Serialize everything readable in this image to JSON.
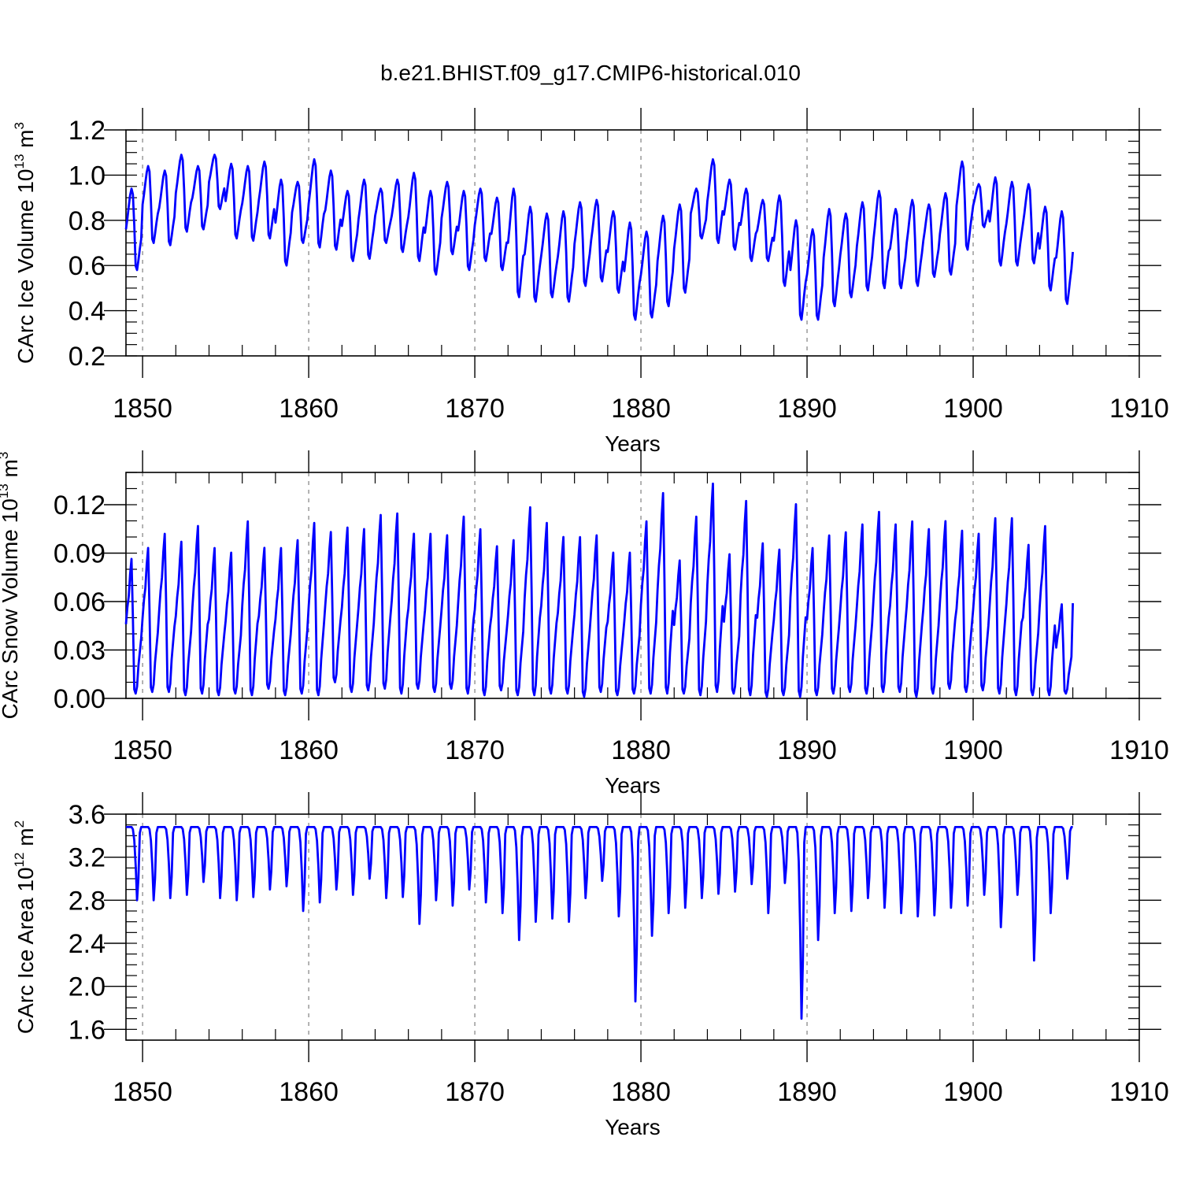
{
  "figure": {
    "title": "b.e21.BHIST.f09_g17.CMIP6-historical.010",
    "line_color": "#0000ff",
    "grid_color": "#808080"
  },
  "chart_data": [
    {
      "type": "line",
      "id": "ice-volume",
      "title": "",
      "xlabel": "Years",
      "ylabel": "CArc Ice Volume",
      "ylabel_scale": "10",
      "ylabel_scale_exp": "13",
      "ylabel_unit": "m",
      "ylabel_unit_exp": "3",
      "xlim": [
        1849.0,
        1910.0
      ],
      "ylim": [
        0.2,
        1.2
      ],
      "xticks": [
        1850,
        1860,
        1870,
        1880,
        1890,
        1900,
        1910
      ],
      "xtick_labels": [
        "1850",
        "1860",
        "1870",
        "1880",
        "1890",
        "1900",
        "1910"
      ],
      "yticks": [
        0.2,
        0.4,
        0.6,
        0.8,
        1.0,
        1.2
      ],
      "ytick_labels": [
        "0.2",
        "0.4",
        "0.6",
        "0.8",
        "1.0",
        "1.2"
      ],
      "yminor_step": 0.05,
      "series": [
        {
          "name": "CArc Ice Volume",
          "x_start": 1849.0,
          "x_step_per_year": 12,
          "annual_max": [
            0.94,
            1.04,
            1.02,
            1.09,
            1.04,
            1.09,
            1.05,
            1.04,
            1.06,
            0.98,
            0.97,
            1.07,
            1.02,
            0.93,
            0.98,
            0.94,
            0.98,
            1.01,
            0.93,
            0.97,
            0.93,
            0.94,
            0.9,
            0.94,
            0.86,
            0.83,
            0.84,
            0.88,
            0.89,
            0.84,
            0.79,
            0.75,
            0.82,
            0.87,
            0.94,
            1.07,
            0.98,
            0.94,
            0.89,
            0.91,
            0.8,
            0.76,
            0.85,
            0.83,
            0.88,
            0.93,
            0.85,
            0.89,
            0.87,
            0.92,
            1.06,
            0.96,
            0.99,
            0.97,
            0.96,
            0.86,
            0.84
          ],
          "annual_min": [
            0.58,
            0.7,
            0.69,
            0.75,
            0.76,
            0.85,
            0.72,
            0.71,
            0.72,
            0.6,
            0.7,
            0.68,
            0.67,
            0.62,
            0.63,
            0.7,
            0.66,
            0.62,
            0.56,
            0.65,
            0.58,
            0.62,
            0.58,
            0.46,
            0.44,
            0.46,
            0.44,
            0.51,
            0.53,
            0.48,
            0.36,
            0.37,
            0.42,
            0.48,
            0.72,
            0.7,
            0.67,
            0.62,
            0.62,
            0.51,
            0.36,
            0.36,
            0.42,
            0.46,
            0.49,
            0.5,
            0.5,
            0.51,
            0.55,
            0.56,
            0.67,
            0.77,
            0.6,
            0.6,
            0.61,
            0.49,
            0.43
          ],
          "end_value": 0.66
        }
      ]
    },
    {
      "type": "line",
      "id": "snow-volume",
      "title": "",
      "xlabel": "Years",
      "ylabel": "CArc Snow Volume",
      "ylabel_scale": "10",
      "ylabel_scale_exp": "13",
      "ylabel_unit": "m",
      "ylabel_unit_exp": "3",
      "xlim": [
        1849.0,
        1910.0
      ],
      "ylim": [
        0.0,
        0.14
      ],
      "xticks": [
        1850,
        1860,
        1870,
        1880,
        1890,
        1900,
        1910
      ],
      "xtick_labels": [
        "1850",
        "1860",
        "1870",
        "1880",
        "1890",
        "1900",
        "1910"
      ],
      "yticks": [
        0.0,
        0.03,
        0.06,
        0.09,
        0.12
      ],
      "ytick_labels": [
        "0.00",
        "0.03",
        "0.06",
        "0.09",
        "0.12"
      ],
      "yminor_step": 0.01,
      "series": [
        {
          "name": "CArc Snow Volume",
          "x_start": 1849.0,
          "x_step_per_year": 12,
          "annual_max": [
            0.089,
            0.096,
            0.105,
            0.1,
            0.11,
            0.096,
            0.093,
            0.113,
            0.096,
            0.096,
            0.101,
            0.112,
            0.106,
            0.109,
            0.108,
            0.117,
            0.118,
            0.105,
            0.105,
            0.104,
            0.116,
            0.108,
            0.097,
            0.101,
            0.122,
            0.112,
            0.103,
            0.103,
            0.104,
            0.093,
            0.093,
            0.113,
            0.131,
            0.088,
            0.116,
            0.137,
            0.092,
            0.126,
            0.099,
            0.095,
            0.124,
            0.096,
            0.104,
            0.106,
            0.111,
            0.119,
            0.111,
            0.113,
            0.108,
            0.113,
            0.107,
            0.105,
            0.115,
            0.115,
            0.098,
            0.11,
            0.06
          ],
          "annual_min": [
            0.003,
            0.004,
            0.004,
            0.002,
            0.003,
            0.002,
            0.003,
            0.002,
            0.006,
            0.002,
            0.003,
            0.002,
            0.01,
            0.004,
            0.005,
            0.006,
            0.003,
            0.006,
            0.004,
            0.006,
            0.003,
            0.002,
            0.005,
            0.002,
            0.002,
            0.003,
            0.003,
            0.001,
            0.004,
            0.002,
            0.003,
            0.003,
            0.003,
            0.003,
            0.002,
            0.004,
            0.003,
            0.002,
            0.001,
            0.002,
            0.001,
            0.002,
            0.003,
            0.004,
            0.003,
            0.004,
            0.004,
            0.001,
            0.003,
            0.006,
            0.004,
            0.005,
            0.003,
            0.002,
            0.002,
            0.002,
            0.003
          ],
          "end_value": 0.059
        }
      ]
    },
    {
      "type": "line",
      "id": "ice-area",
      "title": "",
      "xlabel": "Years",
      "ylabel": "CArc Ice Area",
      "ylabel_scale": "10",
      "ylabel_scale_exp": "12",
      "ylabel_unit": "m",
      "ylabel_unit_exp": "2",
      "xlim": [
        1849.0,
        1910.0
      ],
      "ylim": [
        1.5,
        3.6
      ],
      "xticks": [
        1850,
        1860,
        1870,
        1880,
        1890,
        1900,
        1910
      ],
      "xtick_labels": [
        "1850",
        "1860",
        "1870",
        "1880",
        "1890",
        "1900",
        "1910"
      ],
      "yticks": [
        1.6,
        2.0,
        2.4,
        2.8,
        3.2,
        3.6
      ],
      "ytick_labels": [
        "1.6",
        "2.0",
        "2.4",
        "2.8",
        "3.2",
        "3.6"
      ],
      "yminor_step": 0.1,
      "series": [
        {
          "name": "CArc Ice Area",
          "x_start": 1849.0,
          "x_step_per_year": 12,
          "plateau": 3.48,
          "annual_min": [
            2.8,
            2.8,
            2.82,
            2.85,
            2.97,
            2.82,
            2.8,
            2.83,
            2.9,
            2.93,
            2.7,
            2.78,
            2.9,
            2.85,
            3.0,
            2.82,
            2.83,
            2.58,
            2.8,
            2.75,
            2.9,
            2.78,
            2.68,
            2.43,
            2.6,
            2.63,
            2.6,
            2.82,
            2.98,
            2.65,
            1.86,
            2.47,
            2.68,
            2.73,
            2.82,
            2.86,
            2.88,
            2.95,
            2.68,
            2.96,
            1.7,
            2.43,
            2.68,
            2.7,
            2.82,
            2.73,
            2.68,
            2.65,
            2.66,
            2.73,
            2.75,
            2.85,
            2.55,
            2.85,
            2.24,
            2.68,
            3.0
          ],
          "end_value": 3.48
        }
      ]
    }
  ]
}
